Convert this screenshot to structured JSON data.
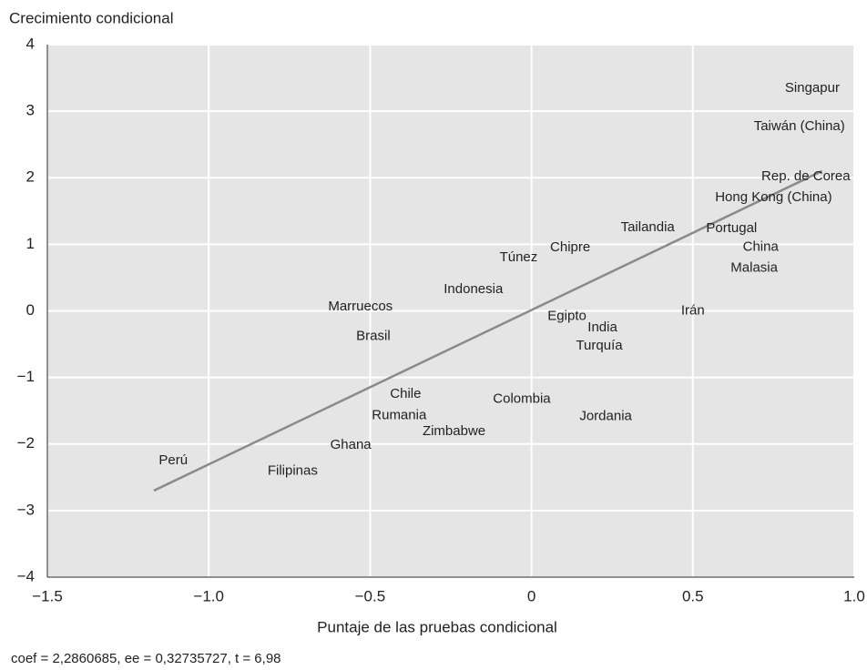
{
  "chart_data": {
    "type": "scatter",
    "ylabel": "Crecimiento condicional",
    "xlabel": "Puntaje de las pruebas condicional",
    "note": "coef = 2,2860685, ee = 0,32735727, t = 6,98",
    "xlim": [
      -1.5,
      1.0
    ],
    "ylim": [
      -4,
      4
    ],
    "xticks": [
      {
        "value": -1.5,
        "label": "−1.5"
      },
      {
        "value": -1.0,
        "label": "−1.0"
      },
      {
        "value": -0.5,
        "label": "−0.5"
      },
      0,
      0.5,
      {
        "value": 1.0,
        "label": "1.0"
      }
    ],
    "yticks": [
      {
        "value": -4,
        "label": "−4"
      },
      {
        "value": -3,
        "label": "−3"
      },
      {
        "value": -2,
        "label": "−2"
      },
      {
        "value": -1,
        "label": "−1"
      },
      0,
      1,
      2,
      3,
      4
    ],
    "grid": true,
    "background": "#e5e5e5",
    "line_color": "#8a8a8a",
    "points": [
      {
        "label": "Singapur",
        "x": 0.87,
        "y": 3.34
      },
      {
        "label": "Taiwán (China)",
        "x": 0.83,
        "y": 2.77
      },
      {
        "label": "Rep. de Corea",
        "x": 0.85,
        "y": 2.02
      },
      {
        "label": "Hong Kong (China)",
        "x": 0.75,
        "y": 1.7
      },
      {
        "label": "Tailandia",
        "x": 0.36,
        "y": 1.25
      },
      {
        "label": "Portugal",
        "x": 0.62,
        "y": 1.24
      },
      {
        "label": "China",
        "x": 0.71,
        "y": 0.96
      },
      {
        "label": "Malasia",
        "x": 0.69,
        "y": 0.64
      },
      {
        "label": "Chipre",
        "x": 0.12,
        "y": 0.95
      },
      {
        "label": "Túnez",
        "x": -0.04,
        "y": 0.8
      },
      {
        "label": "Indonesia",
        "x": -0.18,
        "y": 0.32
      },
      {
        "label": "Marruecos",
        "x": -0.53,
        "y": 0.06
      },
      {
        "label": "Irán",
        "x": 0.5,
        "y": 0.0
      },
      {
        "label": "Egipto",
        "x": 0.11,
        "y": -0.08
      },
      {
        "label": "India",
        "x": 0.22,
        "y": -0.25
      },
      {
        "label": "Turquía",
        "x": 0.21,
        "y": -0.53
      },
      {
        "label": "Brasil",
        "x": -0.49,
        "y": -0.38
      },
      {
        "label": "Chile",
        "x": -0.39,
        "y": -1.25
      },
      {
        "label": "Colombia",
        "x": -0.03,
        "y": -1.33
      },
      {
        "label": "Rumania",
        "x": -0.41,
        "y": -1.57
      },
      {
        "label": "Jordania",
        "x": 0.23,
        "y": -1.59
      },
      {
        "label": "Zimbabwe",
        "x": -0.24,
        "y": -1.81
      },
      {
        "label": "Ghana",
        "x": -0.56,
        "y": -2.02
      },
      {
        "label": "Perú",
        "x": -1.11,
        "y": -2.25
      },
      {
        "label": "Filipinas",
        "x": -0.74,
        "y": -2.41
      }
    ],
    "fit_line": {
      "x": [
        -1.17,
        0.9
      ],
      "y": [
        -2.7,
        2.1
      ]
    }
  }
}
